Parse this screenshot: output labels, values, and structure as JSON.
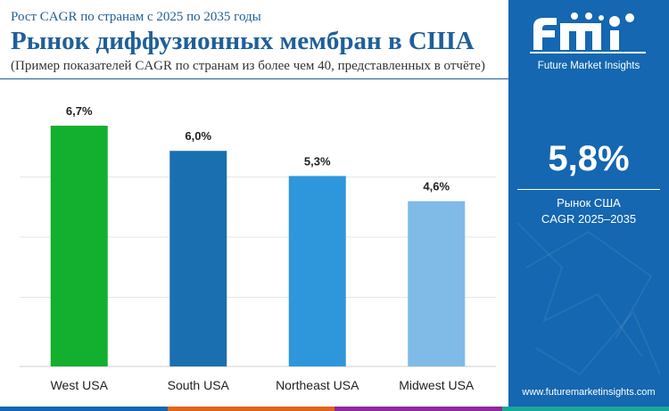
{
  "header": {
    "kicker": "Рост CAGR по странам с 2025 по 2035 годы",
    "title": "Рынок диффузионных мембран в США",
    "subtitle": "(Пример показателей CAGR по странам из более чем 40, представленных в отчёте)"
  },
  "sidebar": {
    "brand": "Future Market Insights",
    "metric_value": "5,8%",
    "metric_line1": "Рынок США",
    "metric_line2": "CAGR 2025–2035",
    "url": "www.futuremarketinsights.com"
  },
  "colors": {
    "sidebar_bg": "#1467b0",
    "title": "#1f5f99",
    "bars": [
      "#12b02e",
      "#1a6fb0",
      "#2e97dc",
      "#7fbbe6"
    ],
    "footer": [
      "#1467b0",
      "#e2641c",
      "#8b2c9a",
      "#18a79a"
    ]
  },
  "chart_data": {
    "type": "bar",
    "categories": [
      "West USA",
      "South USA",
      "Northeast USA",
      "Midwest USA"
    ],
    "values": [
      6.7,
      6.0,
      5.3,
      4.6
    ],
    "data_labels": [
      "6,7%",
      "6,0%",
      "5,3%",
      "4,6%"
    ],
    "ylim": [
      0,
      6.7
    ],
    "grid": true,
    "legend": "none"
  }
}
